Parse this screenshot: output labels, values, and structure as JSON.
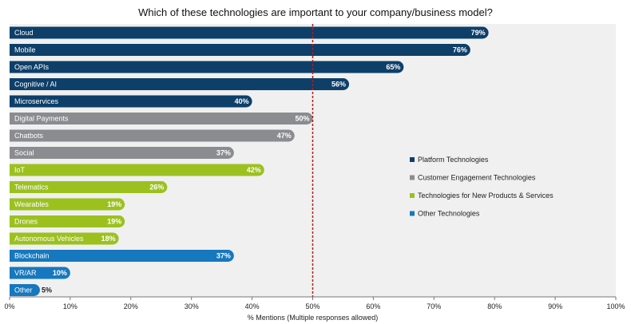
{
  "chart_data": {
    "type": "bar",
    "orientation": "horizontal",
    "title": "Which of these technologies are important to your company/business model?",
    "xlabel": "% Mentions (Multiple responses allowed)",
    "xlim": [
      0,
      100
    ],
    "x_ticks": [
      "0%",
      "10%",
      "20%",
      "30%",
      "40%",
      "50%",
      "60%",
      "70%",
      "80%",
      "90%",
      "100%"
    ],
    "reference_line": 50,
    "legend_position": "right",
    "groups": [
      {
        "name": "Platform Technologies",
        "color": "#0d3f69"
      },
      {
        "name": "Customer Engagement Technologies",
        "color": "#8a8c8f"
      },
      {
        "name": "Technologies for New Products & Services",
        "color": "#9cc11f"
      },
      {
        "name": "Other Technologies",
        "color": "#1678be"
      }
    ],
    "bars": [
      {
        "category": "Cloud",
        "value": 79,
        "label": "79%",
        "group": 0
      },
      {
        "category": "Mobile",
        "value": 76,
        "label": "76%",
        "group": 0
      },
      {
        "category": "Open APIs",
        "value": 65,
        "label": "65%",
        "group": 0
      },
      {
        "category": "Cognitive / AI",
        "value": 56,
        "label": "56%",
        "group": 0
      },
      {
        "category": "Microservices",
        "value": 40,
        "label": "40%",
        "group": 0
      },
      {
        "category": "Digital Payments",
        "value": 50,
        "label": "50%",
        "group": 1
      },
      {
        "category": "Chatbots",
        "value": 47,
        "label": "47%",
        "group": 1
      },
      {
        "category": "Social",
        "value": 37,
        "label": "37%",
        "group": 1
      },
      {
        "category": "IoT",
        "value": 42,
        "label": "42%",
        "group": 2
      },
      {
        "category": "Telematics",
        "value": 26,
        "label": "26%",
        "group": 2
      },
      {
        "category": "Wearables",
        "value": 19,
        "label": "19%",
        "group": 2
      },
      {
        "category": "Drones",
        "value": 19,
        "label": "19%",
        "group": 2
      },
      {
        "category": "Autonomous Vehicles",
        "value": 18,
        "label": "18%",
        "group": 2
      },
      {
        "category": "Blockchain",
        "value": 37,
        "label": "37%",
        "group": 3
      },
      {
        "category": "VR/AR",
        "value": 10,
        "label": "10%",
        "group": 3
      },
      {
        "category": "Other",
        "value": 5,
        "label": "5%",
        "group": 3
      }
    ],
    "colors": {
      "plot_background": "#f0f0f0",
      "reference_line": "#b01c1c"
    }
  }
}
